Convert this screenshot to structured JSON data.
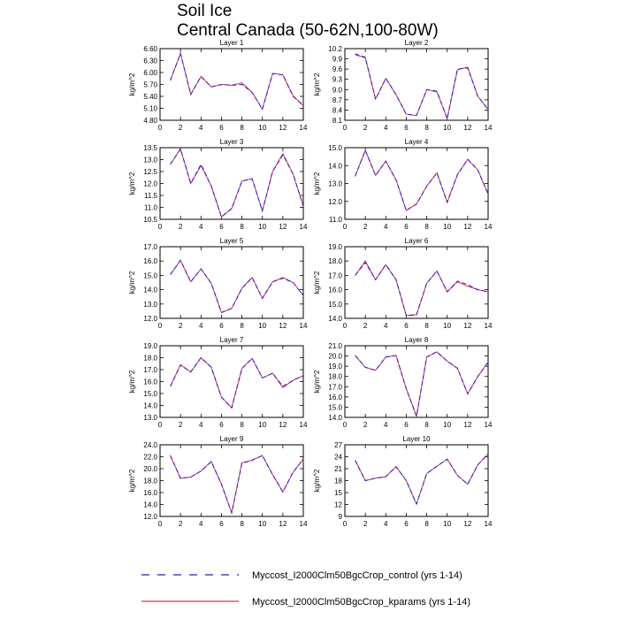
{
  "title": "Soil Ice",
  "subtitle": "Central Canada (50-62N,100-80W)",
  "legend": [
    {
      "name": "Myccost_I2000Clm50BgcCrop_control (yrs 1-14)",
      "color": "#1f1fd0",
      "dash": true
    },
    {
      "name": "Myccost_I2000Clm50BgcCrop_kparams (yrs 1-14)",
      "color": "#e8304a",
      "dash": false
    }
  ],
  "chart_data": [
    {
      "type": "line",
      "title": "Layer 1",
      "ylabel": "kg/m^2",
      "x": [
        1,
        2,
        3,
        4,
        5,
        6,
        7,
        8,
        9,
        10,
        11,
        12,
        13,
        14
      ],
      "xlim": [
        0,
        14
      ],
      "xticks": [
        0,
        2,
        4,
        6,
        8,
        10,
        12,
        14
      ],
      "ylim": [
        4.8,
        6.6
      ],
      "yticks": [
        "4.80",
        "5.10",
        "5.40",
        "5.70",
        "6.00",
        "6.30",
        "6.60"
      ],
      "series": [
        {
          "name": "Myccost_I2000Clm50BgcCrop_control (yrs 1-14)",
          "values": [
            5.8,
            6.48,
            5.45,
            5.9,
            5.64,
            5.7,
            5.68,
            5.7,
            5.5,
            5.08,
            5.97,
            5.94,
            5.4,
            5.18
          ]
        },
        {
          "name": "Myccost_I2000Clm50BgcCrop_kparams (yrs 1-14)",
          "values": [
            5.8,
            6.48,
            5.45,
            5.9,
            5.64,
            5.7,
            5.68,
            5.74,
            5.5,
            5.08,
            5.98,
            5.94,
            5.42,
            5.16
          ]
        }
      ]
    },
    {
      "type": "line",
      "title": "Layer 2",
      "ylabel": "kg/m^2",
      "x": [
        1,
        2,
        3,
        4,
        5,
        6,
        7,
        8,
        9,
        10,
        11,
        12,
        13,
        14
      ],
      "xlim": [
        0,
        14
      ],
      "xticks": [
        0,
        2,
        4,
        6,
        8,
        10,
        12,
        14
      ],
      "ylim": [
        8.1,
        10.2
      ],
      "yticks": [
        "8.1",
        "8.4",
        "8.7",
        "9.0",
        "9.3",
        "9.6",
        "9.9",
        "10.2"
      ],
      "series": [
        {
          "name": "Myccost_I2000Clm50BgcCrop_control (yrs 1-14)",
          "values": [
            10.05,
            9.95,
            8.72,
            9.33,
            8.85,
            8.28,
            8.24,
            9.0,
            8.95,
            8.15,
            9.6,
            9.63,
            8.8,
            8.42
          ]
        },
        {
          "name": "Myccost_I2000Clm50BgcCrop_kparams (yrs 1-14)",
          "values": [
            10.02,
            9.93,
            8.72,
            9.33,
            8.85,
            8.28,
            8.24,
            9.0,
            8.93,
            8.15,
            9.58,
            9.66,
            8.8,
            8.42
          ]
        }
      ]
    },
    {
      "type": "line",
      "title": "Layer 3",
      "ylabel": "kg/m^2",
      "x": [
        1,
        2,
        3,
        4,
        5,
        6,
        7,
        8,
        9,
        10,
        11,
        12,
        13,
        14
      ],
      "xlim": [
        0,
        14
      ],
      "xticks": [
        0,
        2,
        4,
        6,
        8,
        10,
        12,
        14
      ],
      "ylim": [
        10.5,
        13.5
      ],
      "yticks": [
        "10.5",
        "11.0",
        "11.5",
        "12.0",
        "12.5",
        "13.0",
        "13.5"
      ],
      "series": [
        {
          "name": "Myccost_I2000Clm50BgcCrop_control (yrs 1-14)",
          "values": [
            12.8,
            13.45,
            12.0,
            12.8,
            11.9,
            10.6,
            10.95,
            12.1,
            12.2,
            10.85,
            12.5,
            13.2,
            12.4,
            11.05
          ]
        },
        {
          "name": "Myccost_I2000Clm50BgcCrop_kparams (yrs 1-14)",
          "values": [
            12.8,
            13.45,
            12.0,
            12.75,
            11.9,
            10.6,
            10.95,
            12.1,
            12.2,
            10.85,
            12.5,
            13.25,
            12.4,
            11.05
          ]
        }
      ]
    },
    {
      "type": "line",
      "title": "Layer 4",
      "ylabel": "kg/m^2",
      "x": [
        1,
        2,
        3,
        4,
        5,
        6,
        7,
        8,
        9,
        10,
        11,
        12,
        13,
        14
      ],
      "xlim": [
        0,
        14
      ],
      "xticks": [
        0,
        2,
        4,
        6,
        8,
        10,
        12,
        14
      ],
      "ylim": [
        11.0,
        15.0
      ],
      "yticks": [
        "11.0",
        "12.0",
        "13.0",
        "14.0",
        "15.0"
      ],
      "series": [
        {
          "name": "Myccost_I2000Clm50BgcCrop_control (yrs 1-14)",
          "values": [
            13.4,
            14.85,
            13.45,
            14.25,
            13.2,
            11.5,
            11.85,
            12.85,
            13.6,
            11.95,
            13.5,
            14.35,
            13.75,
            12.4
          ]
        },
        {
          "name": "Myccost_I2000Clm50BgcCrop_kparams (yrs 1-14)",
          "values": [
            13.4,
            14.85,
            13.45,
            14.25,
            13.2,
            11.5,
            11.85,
            12.85,
            13.6,
            11.95,
            13.5,
            14.35,
            13.75,
            12.4
          ]
        }
      ]
    },
    {
      "type": "line",
      "title": "Layer 5",
      "ylabel": "kg/m^2",
      "x": [
        1,
        2,
        3,
        4,
        5,
        6,
        7,
        8,
        9,
        10,
        11,
        12,
        13,
        14
      ],
      "xlim": [
        0,
        14
      ],
      "xticks": [
        0,
        2,
        4,
        6,
        8,
        10,
        12,
        14
      ],
      "ylim": [
        12.0,
        17.0
      ],
      "yticks": [
        "12.0",
        "13.0",
        "14.0",
        "15.0",
        "16.0",
        "17.0"
      ],
      "series": [
        {
          "name": "Myccost_I2000Clm50BgcCrop_control (yrs 1-14)",
          "values": [
            15.05,
            16.05,
            14.55,
            15.45,
            14.45,
            12.4,
            12.7,
            14.1,
            14.85,
            13.4,
            14.55,
            14.8,
            14.5,
            13.6
          ]
        },
        {
          "name": "Myccost_I2000Clm50BgcCrop_kparams (yrs 1-14)",
          "values": [
            15.05,
            16.05,
            14.55,
            15.45,
            14.45,
            12.4,
            12.7,
            14.1,
            14.85,
            13.4,
            14.55,
            14.85,
            14.5,
            13.6
          ]
        }
      ]
    },
    {
      "type": "line",
      "title": "Layer 6",
      "ylabel": "kg/m^2",
      "x": [
        1,
        2,
        3,
        4,
        5,
        6,
        7,
        8,
        9,
        10,
        11,
        12,
        13,
        14
      ],
      "xlim": [
        0,
        14
      ],
      "xticks": [
        0,
        2,
        4,
        6,
        8,
        10,
        12,
        14
      ],
      "ylim": [
        14.0,
        19.0
      ],
      "yticks": [
        "14.0",
        "15.0",
        "16.0",
        "17.0",
        "18.0",
        "19.0"
      ],
      "series": [
        {
          "name": "Myccost_I2000Clm50BgcCrop_control (yrs 1-14)",
          "values": [
            17.0,
            17.9,
            16.7,
            17.75,
            16.7,
            14.2,
            14.25,
            16.45,
            17.3,
            15.85,
            16.6,
            16.35,
            16.0,
            15.85
          ]
        },
        {
          "name": "Myccost_I2000Clm50BgcCrop_kparams (yrs 1-14)",
          "values": [
            17.0,
            18.0,
            16.7,
            17.75,
            16.7,
            14.2,
            14.25,
            16.45,
            17.3,
            15.85,
            16.55,
            16.25,
            16.0,
            15.85
          ]
        }
      ]
    },
    {
      "type": "line",
      "title": "Layer 7",
      "ylabel": "kg/m^2",
      "x": [
        1,
        2,
        3,
        4,
        5,
        6,
        7,
        8,
        9,
        10,
        11,
        12,
        13,
        14
      ],
      "xlim": [
        0,
        14
      ],
      "xticks": [
        0,
        2,
        4,
        6,
        8,
        10,
        12,
        14
      ],
      "ylim": [
        13.0,
        19.0
      ],
      "yticks": [
        "13.0",
        "14.0",
        "15.0",
        "16.0",
        "17.0",
        "18.0",
        "19.0"
      ],
      "series": [
        {
          "name": "Myccost_I2000Clm50BgcCrop_control (yrs 1-14)",
          "values": [
            15.6,
            17.4,
            16.8,
            18.0,
            17.2,
            14.7,
            13.8,
            17.1,
            17.95,
            16.3,
            16.7,
            15.6,
            16.1,
            16.5
          ]
        },
        {
          "name": "Myccost_I2000Clm50BgcCrop_kparams (yrs 1-14)",
          "values": [
            15.6,
            17.4,
            16.8,
            18.0,
            17.2,
            14.7,
            13.8,
            17.1,
            17.95,
            16.3,
            16.7,
            15.5,
            16.1,
            16.5
          ]
        }
      ]
    },
    {
      "type": "line",
      "title": "Layer 8",
      "ylabel": "kg/m^2",
      "x": [
        1,
        2,
        3,
        4,
        5,
        6,
        7,
        8,
        9,
        10,
        11,
        12,
        13,
        14
      ],
      "xlim": [
        0,
        14
      ],
      "xticks": [
        0,
        2,
        4,
        6,
        8,
        10,
        12,
        14
      ],
      "ylim": [
        14.0,
        21.0
      ],
      "yticks": [
        "14.0",
        "15.0",
        "16.0",
        "17.0",
        "18.0",
        "19.0",
        "20.0",
        "21.0"
      ],
      "series": [
        {
          "name": "Myccost_I2000Clm50BgcCrop_control (yrs 1-14)",
          "values": [
            20.05,
            18.9,
            18.6,
            19.9,
            20.05,
            16.8,
            14.1,
            19.9,
            20.4,
            19.5,
            18.8,
            16.3,
            18.0,
            19.4
          ]
        },
        {
          "name": "Myccost_I2000Clm50BgcCrop_kparams (yrs 1-14)",
          "values": [
            20.05,
            18.9,
            18.6,
            19.9,
            20.05,
            16.8,
            14.1,
            19.9,
            20.4,
            19.5,
            18.8,
            16.3,
            18.0,
            19.4
          ]
        }
      ]
    },
    {
      "type": "line",
      "title": "Layer 9",
      "ylabel": "kg/m^2",
      "x": [
        1,
        2,
        3,
        4,
        5,
        6,
        7,
        8,
        9,
        10,
        11,
        12,
        13,
        14
      ],
      "xlim": [
        0,
        14
      ],
      "xticks": [
        0,
        2,
        4,
        6,
        8,
        10,
        12,
        14
      ],
      "ylim": [
        12.0,
        24.0
      ],
      "yticks": [
        "12.0",
        "14.0",
        "16.0",
        "18.0",
        "20.0",
        "22.0",
        "24.0"
      ],
      "series": [
        {
          "name": "Myccost_I2000Clm50BgcCrop_control (yrs 1-14)",
          "values": [
            22.2,
            18.4,
            18.6,
            19.6,
            21.2,
            17.4,
            12.6,
            20.9,
            21.4,
            22.2,
            19.0,
            16.1,
            19.4,
            21.6
          ]
        },
        {
          "name": "Myccost_I2000Clm50BgcCrop_kparams (yrs 1-14)",
          "values": [
            22.2,
            18.4,
            18.6,
            19.6,
            21.2,
            17.4,
            12.6,
            21.0,
            21.4,
            22.2,
            19.0,
            16.1,
            19.4,
            21.6
          ]
        }
      ]
    },
    {
      "type": "line",
      "title": "Layer 10",
      "ylabel": "kg/m^2",
      "x": [
        1,
        2,
        3,
        4,
        5,
        6,
        7,
        8,
        9,
        10,
        11,
        12,
        13,
        14
      ],
      "xlim": [
        0,
        14
      ],
      "xticks": [
        0,
        2,
        4,
        6,
        8,
        10,
        12,
        14
      ],
      "ylim": [
        9,
        27
      ],
      "yticks": [
        "9",
        "12",
        "15",
        "18",
        "21",
        "24",
        "27"
      ],
      "series": [
        {
          "name": "Myccost_I2000Clm50BgcCrop_control (yrs 1-14)",
          "values": [
            23.1,
            18.0,
            18.6,
            19.0,
            21.5,
            18.0,
            12.1,
            19.8,
            21.6,
            23.4,
            19.3,
            17.1,
            22.0,
            24.7
          ]
        },
        {
          "name": "Myccost_I2000Clm50BgcCrop_kparams (yrs 1-14)",
          "values": [
            23.1,
            18.0,
            18.6,
            19.0,
            21.5,
            18.0,
            12.1,
            19.8,
            21.6,
            23.4,
            19.3,
            17.1,
            22.0,
            24.7
          ]
        }
      ]
    }
  ]
}
